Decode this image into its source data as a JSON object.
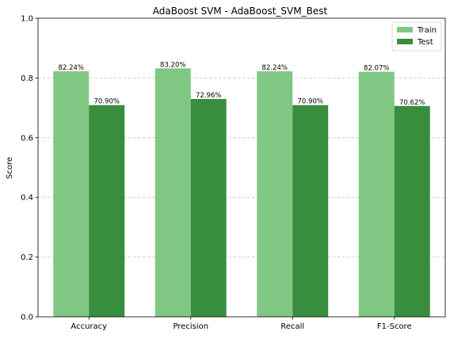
{
  "chart_data": {
    "type": "bar",
    "title": "AdaBoost SVM - AdaBoost_SVM_Best",
    "xlabel": "",
    "ylabel": "Score",
    "categories": [
      "Accuracy",
      "Precision",
      "Recall",
      "F1-Score"
    ],
    "series": [
      {
        "name": "Train",
        "color": "#81c784",
        "values": [
          0.8224,
          0.832,
          0.8224,
          0.8207
        ],
        "labels": [
          "82.24%",
          "83.20%",
          "82.24%",
          "82.07%"
        ]
      },
      {
        "name": "Test",
        "color": "#388e3c",
        "values": [
          0.709,
          0.7296,
          0.709,
          0.7062
        ],
        "labels": [
          "70.90%",
          "72.96%",
          "70.90%",
          "70.62%"
        ]
      }
    ],
    "ylim": [
      0,
      1.0
    ],
    "yticks": [
      "0.0",
      "0.2",
      "0.4",
      "0.6",
      "0.8",
      "1.0"
    ],
    "grid": "y-dashed",
    "legend_position": "top-right"
  }
}
